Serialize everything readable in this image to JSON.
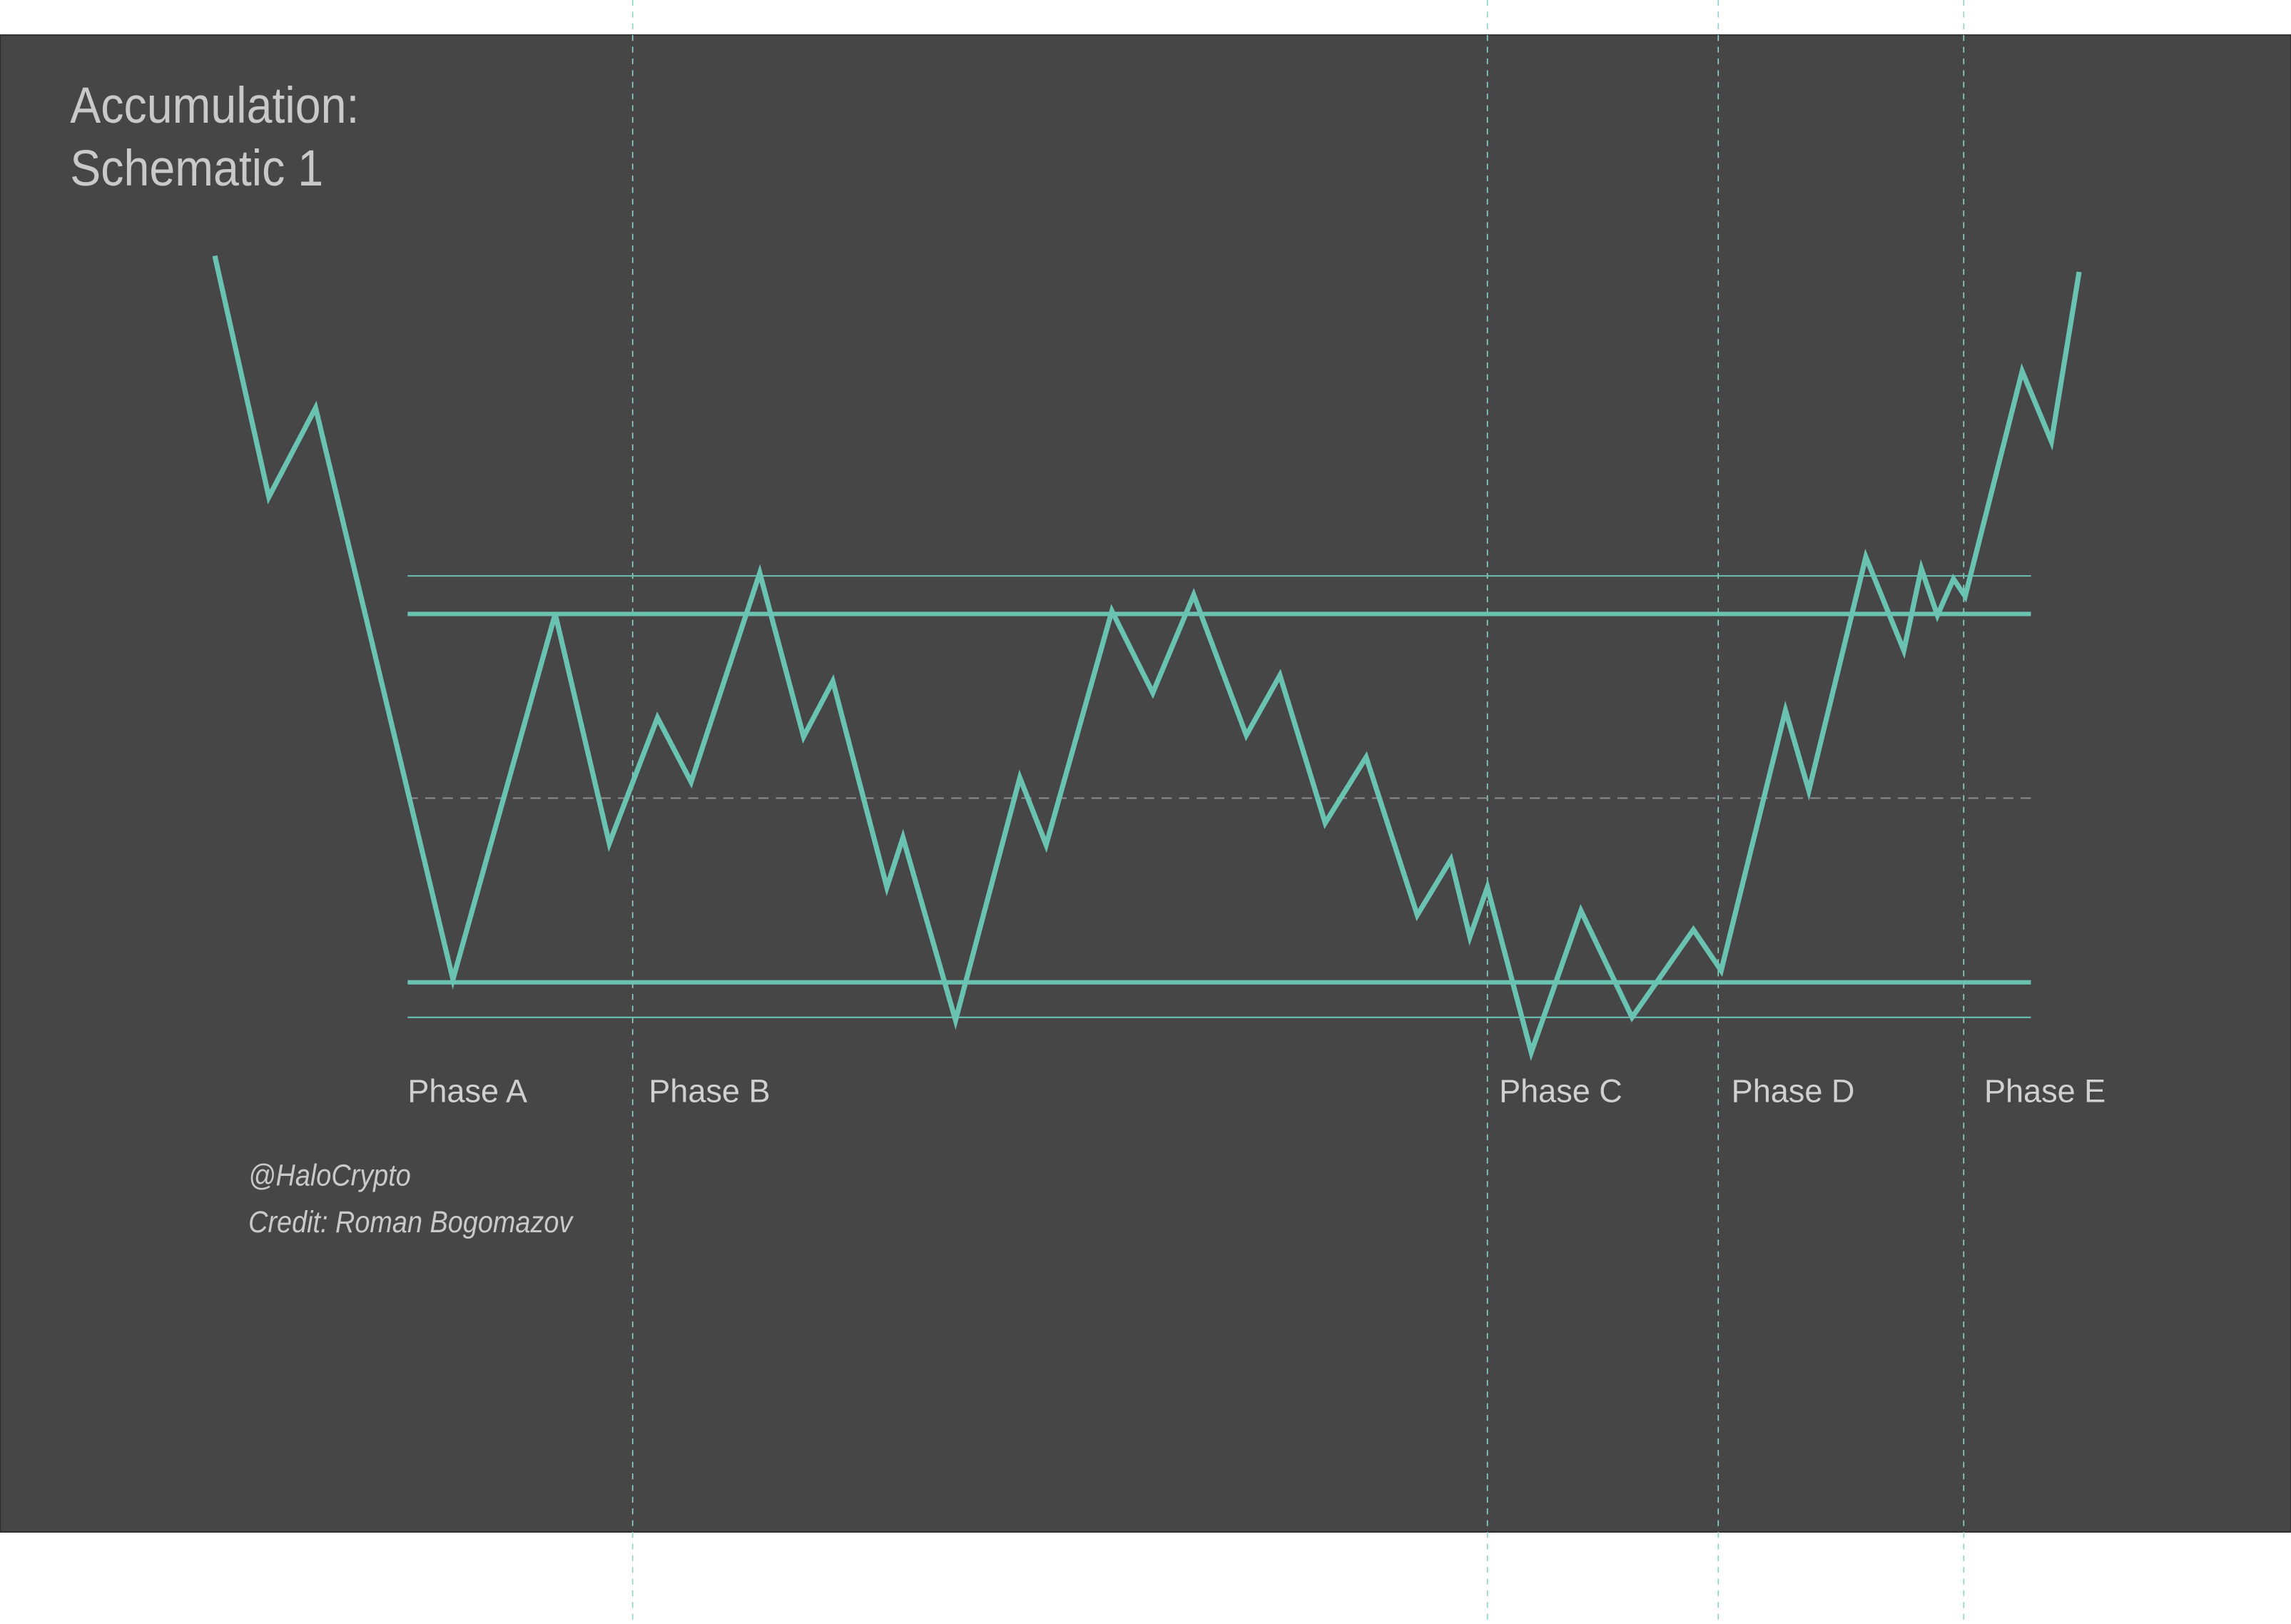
{
  "title": {
    "lines": [
      "Accumulation:",
      "Schematic 1"
    ]
  },
  "phases": [
    "Phase A",
    "Phase B",
    "Phase C",
    "Phase D",
    "Phase E"
  ],
  "credits": [
    "@HaloCrypto",
    "Credit: Roman Bogomazov"
  ]
}
